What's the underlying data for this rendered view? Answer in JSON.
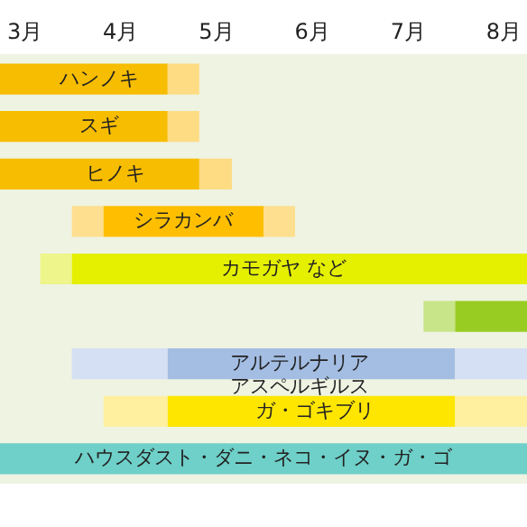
{
  "chart_data": {
    "type": "bar",
    "orientation": "horizontal",
    "tick_labels": "x",
    "categories": [
      "ハンノキ",
      "スギ",
      "ヒノキ",
      "シラカンバ",
      "カモガヤ など",
      null,
      "アルテルナリアアスペルギルス",
      "ガ・ゴキブリ",
      "ハウスダスト・ダニ・ネコ・イヌ・ガ・ゴ"
    ],
    "series": [
      {
        "colors": [
          "#fddc84",
          "#fddc84",
          "#fddc84",
          "#fedf90",
          "#eef58a",
          "#c8e58a",
          "#d5e0f5",
          "#fff0a0",
          "#6ed0c8"
        ],
        "base": [
          null,
          null,
          null,
          4.0,
          3.67,
          7.67,
          4.0,
          4.33,
          null
        ],
        "values": [
          null,
          null,
          null,
          0.33,
          0.33,
          0.33,
          1.0,
          0.67,
          null
        ]
      },
      {
        "colors": [
          "#f7bd00",
          "#f7bd00",
          "#f7bd00",
          "#ffbf00",
          "#e5f000",
          "#99cc22",
          "#a3bde3",
          "#ffe600",
          "#6ed0c8"
        ],
        "base": [
          3.25,
          3.25,
          3.25,
          4.33,
          4.0,
          8.0,
          5.0,
          5.0,
          3.25
        ],
        "values": [
          1.75,
          1.75,
          2.08,
          1.67,
          4.75,
          0.75,
          3.0,
          3.0,
          5.5
        ]
      },
      {
        "colors": [
          "#fddc84",
          "#fddc84",
          "#fddc84",
          "#fedf90",
          "#eef58a",
          "#c8e58a",
          "#d5e0f5",
          "#fff0a0",
          "#6ed0c8"
        ],
        "base": [
          5.0,
          5.0,
          5.33,
          6.0,
          null,
          null,
          8.0,
          8.0,
          null
        ],
        "values": [
          0.33,
          0.33,
          0.34,
          0.33,
          null,
          null,
          0.75,
          0.75,
          null
        ]
      }
    ],
    "xlim": [
      3.25,
      8.75
    ],
    "xticks": [
      {
        "value": 3.5,
        "label": "3月"
      },
      {
        "value": 4.5,
        "label": "4月"
      },
      {
        "value": 5.5,
        "label": "5月"
      },
      {
        "value": 6.5,
        "label": "6月"
      },
      {
        "value": 7.5,
        "label": "7月"
      },
      {
        "value": 8.5,
        "label": "8月"
      }
    ]
  }
}
